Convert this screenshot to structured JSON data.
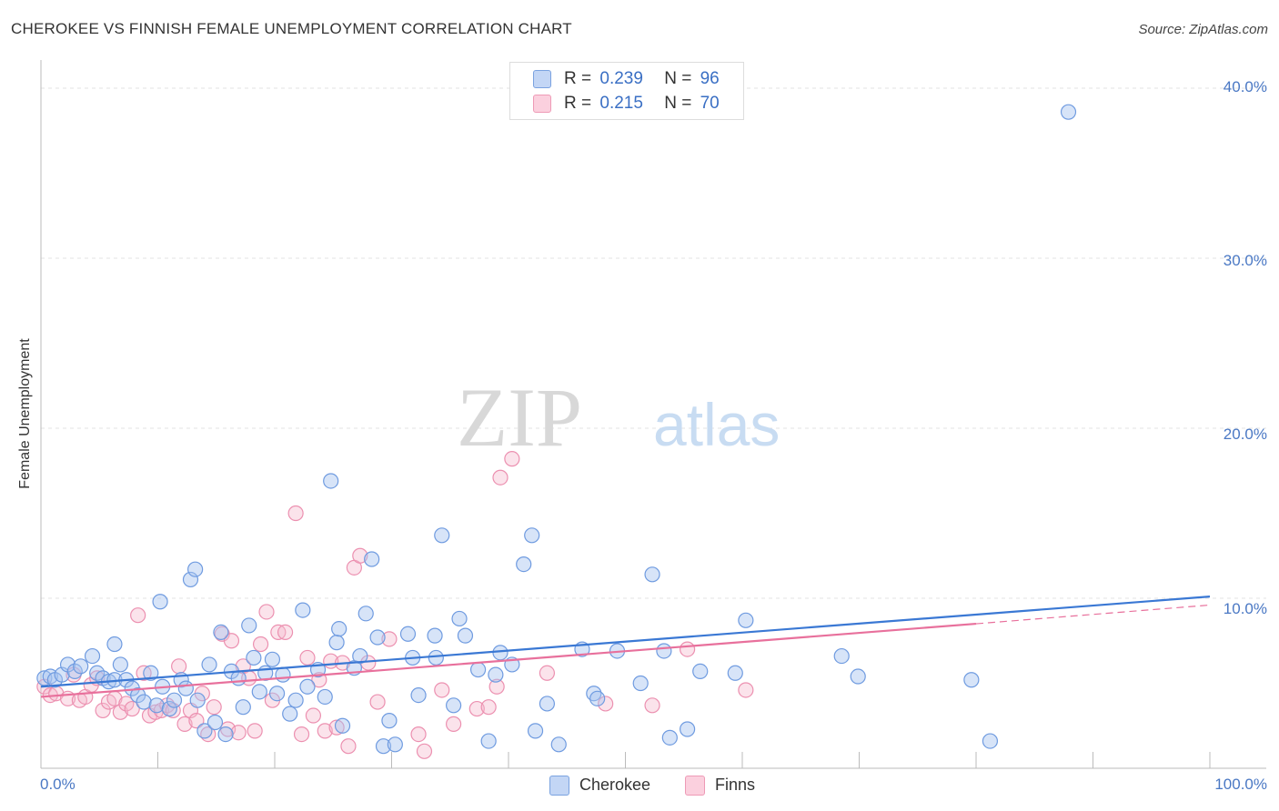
{
  "header": {
    "title": "CHEROKEE VS FINNISH FEMALE UNEMPLOYMENT CORRELATION CHART",
    "source": "Source: ZipAtlas.com"
  },
  "watermark": {
    "zip": "ZIP",
    "atlas": "atlas"
  },
  "legend_top": {
    "rows": [
      {
        "r_label": "R =",
        "r_value": "0.239",
        "n_label": "N =",
        "n_value": "96",
        "color": "#8fb4ec"
      },
      {
        "r_label": "R =",
        "r_value": "0.215",
        "n_label": "N =",
        "n_value": "70",
        "color": "#f4a8c0"
      }
    ]
  },
  "legend_bottom": {
    "items": [
      {
        "label": "Cherokee",
        "color": "#8fb4ec"
      },
      {
        "label": "Finns",
        "color": "#f4a8c0"
      }
    ]
  },
  "chart_data": {
    "type": "scatter",
    "title": "CHEROKEE VS FINNISH FEMALE UNEMPLOYMENT CORRELATION CHART",
    "xlabel": "",
    "ylabel": "Female Unemployment",
    "xlim": [
      0,
      100
    ],
    "ylim": [
      0,
      42
    ],
    "x_tick_labels": [
      "0.0%",
      "100.0%"
    ],
    "y_ticks": [
      10,
      20,
      30,
      40
    ],
    "y_tick_labels": [
      "10.0%",
      "20.0%",
      "30.0%",
      "40.0%"
    ],
    "grid": true,
    "legend_position": "top-center",
    "colors": {
      "cherokee": "#3a78d4",
      "finns": "#e8709c"
    },
    "series": [
      {
        "name": "Cherokee",
        "r": 0.239,
        "n": 96,
        "trend": {
          "x0": 0,
          "y0": 4.8,
          "x1": 100,
          "y1": 10.1
        },
        "points": [
          [
            0.3,
            5.3
          ],
          [
            0.8,
            5.4
          ],
          [
            1.2,
            5.2
          ],
          [
            1.8,
            5.5
          ],
          [
            2.3,
            6.1
          ],
          [
            2.9,
            5.7
          ],
          [
            3.4,
            6.0
          ],
          [
            4.4,
            6.6
          ],
          [
            4.8,
            5.6
          ],
          [
            5.3,
            5.3
          ],
          [
            5.8,
            5.1
          ],
          [
            6.3,
            5.2
          ],
          [
            6.3,
            7.3
          ],
          [
            6.8,
            6.1
          ],
          [
            7.3,
            5.2
          ],
          [
            7.8,
            4.7
          ],
          [
            8.3,
            4.3
          ],
          [
            8.8,
            3.9
          ],
          [
            9.4,
            5.6
          ],
          [
            9.9,
            3.7
          ],
          [
            10.2,
            9.8
          ],
          [
            10.4,
            4.8
          ],
          [
            11.0,
            3.5
          ],
          [
            11.4,
            4.0
          ],
          [
            12.0,
            5.2
          ],
          [
            12.4,
            4.7
          ],
          [
            12.8,
            11.1
          ],
          [
            13.2,
            11.7
          ],
          [
            13.4,
            4.0
          ],
          [
            14.0,
            2.2
          ],
          [
            14.4,
            6.1
          ],
          [
            14.9,
            2.7
          ],
          [
            15.4,
            8.0
          ],
          [
            15.8,
            2.0
          ],
          [
            16.3,
            5.7
          ],
          [
            16.9,
            5.3
          ],
          [
            17.3,
            3.6
          ],
          [
            17.8,
            8.4
          ],
          [
            18.2,
            6.5
          ],
          [
            18.7,
            4.5
          ],
          [
            19.2,
            5.6
          ],
          [
            19.8,
            6.4
          ],
          [
            20.2,
            4.4
          ],
          [
            20.7,
            5.5
          ],
          [
            21.3,
            3.2
          ],
          [
            21.8,
            4.0
          ],
          [
            22.4,
            9.3
          ],
          [
            22.8,
            4.8
          ],
          [
            23.7,
            5.8
          ],
          [
            24.3,
            4.2
          ],
          [
            24.8,
            16.9
          ],
          [
            25.3,
            7.4
          ],
          [
            25.5,
            8.2
          ],
          [
            25.8,
            2.5
          ],
          [
            26.8,
            5.9
          ],
          [
            27.3,
            6.6
          ],
          [
            27.8,
            9.1
          ],
          [
            28.3,
            12.3
          ],
          [
            28.8,
            7.7
          ],
          [
            29.3,
            1.3
          ],
          [
            29.8,
            2.8
          ],
          [
            30.3,
            1.4
          ],
          [
            31.4,
            7.9
          ],
          [
            31.8,
            6.5
          ],
          [
            32.3,
            4.3
          ],
          [
            33.7,
            7.8
          ],
          [
            33.8,
            6.5
          ],
          [
            34.3,
            13.7
          ],
          [
            35.3,
            3.7
          ],
          [
            35.8,
            8.8
          ],
          [
            36.3,
            7.8
          ],
          [
            37.4,
            5.8
          ],
          [
            38.3,
            1.6
          ],
          [
            38.9,
            5.5
          ],
          [
            39.3,
            6.8
          ],
          [
            40.3,
            6.1
          ],
          [
            41.3,
            12.0
          ],
          [
            42.0,
            13.7
          ],
          [
            42.3,
            2.2
          ],
          [
            43.3,
            3.8
          ],
          [
            44.3,
            1.4
          ],
          [
            46.3,
            7.0
          ],
          [
            47.3,
            4.4
          ],
          [
            47.6,
            4.1
          ],
          [
            49.3,
            6.9
          ],
          [
            51.3,
            5.0
          ],
          [
            52.3,
            11.4
          ],
          [
            53.3,
            6.9
          ],
          [
            53.8,
            1.8
          ],
          [
            55.3,
            2.3
          ],
          [
            56.4,
            5.7
          ],
          [
            59.4,
            5.6
          ],
          [
            60.3,
            8.7
          ],
          [
            68.5,
            6.6
          ],
          [
            69.9,
            5.4
          ],
          [
            79.6,
            5.2
          ],
          [
            81.2,
            1.6
          ],
          [
            87.9,
            38.6
          ]
        ]
      },
      {
        "name": "Finns",
        "r": 0.215,
        "n": 70,
        "trend": {
          "x0": 0,
          "y0": 4.2,
          "x1": 80,
          "y1": 8.5,
          "dash_to_x": 100,
          "dash_to_y": 9.6
        },
        "points": [
          [
            0.3,
            4.8
          ],
          [
            0.8,
            4.3
          ],
          [
            1.3,
            4.4
          ],
          [
            2.3,
            4.1
          ],
          [
            2.8,
            5.5
          ],
          [
            3.3,
            4.0
          ],
          [
            3.8,
            4.2
          ],
          [
            4.3,
            4.9
          ],
          [
            4.8,
            5.3
          ],
          [
            5.3,
            3.4
          ],
          [
            5.8,
            3.9
          ],
          [
            6.3,
            4.1
          ],
          [
            6.8,
            3.3
          ],
          [
            7.3,
            3.8
          ],
          [
            7.8,
            3.5
          ],
          [
            8.3,
            9.0
          ],
          [
            8.8,
            5.6
          ],
          [
            9.3,
            3.1
          ],
          [
            9.8,
            3.3
          ],
          [
            10.3,
            3.4
          ],
          [
            10.8,
            3.7
          ],
          [
            11.3,
            3.4
          ],
          [
            11.8,
            6.0
          ],
          [
            12.3,
            2.6
          ],
          [
            12.8,
            3.4
          ],
          [
            13.3,
            2.8
          ],
          [
            13.8,
            4.4
          ],
          [
            14.3,
            2.0
          ],
          [
            14.8,
            3.6
          ],
          [
            15.5,
            7.9
          ],
          [
            16.0,
            2.3
          ],
          [
            16.3,
            7.5
          ],
          [
            16.9,
            2.1
          ],
          [
            17.3,
            6.0
          ],
          [
            17.8,
            5.3
          ],
          [
            18.3,
            2.2
          ],
          [
            18.8,
            7.3
          ],
          [
            19.3,
            9.2
          ],
          [
            19.8,
            4.0
          ],
          [
            20.3,
            8.0
          ],
          [
            20.9,
            8.0
          ],
          [
            21.8,
            15.0
          ],
          [
            22.3,
            2.0
          ],
          [
            22.8,
            6.5
          ],
          [
            23.3,
            3.1
          ],
          [
            23.8,
            5.2
          ],
          [
            24.3,
            2.2
          ],
          [
            24.8,
            6.3
          ],
          [
            25.3,
            2.4
          ],
          [
            25.8,
            6.2
          ],
          [
            26.3,
            1.3
          ],
          [
            26.8,
            11.8
          ],
          [
            27.3,
            12.5
          ],
          [
            28.0,
            6.2
          ],
          [
            28.8,
            3.9
          ],
          [
            29.8,
            7.6
          ],
          [
            32.3,
            2.0
          ],
          [
            32.8,
            1.0
          ],
          [
            34.3,
            4.6
          ],
          [
            35.3,
            2.6
          ],
          [
            37.3,
            3.5
          ],
          [
            38.3,
            3.6
          ],
          [
            39.3,
            17.1
          ],
          [
            40.3,
            18.2
          ],
          [
            43.3,
            5.6
          ],
          [
            48.3,
            3.8
          ],
          [
            52.3,
            3.7
          ],
          [
            55.3,
            7.0
          ],
          [
            60.3,
            4.6
          ],
          [
            39.0,
            4.8
          ]
        ]
      }
    ]
  }
}
